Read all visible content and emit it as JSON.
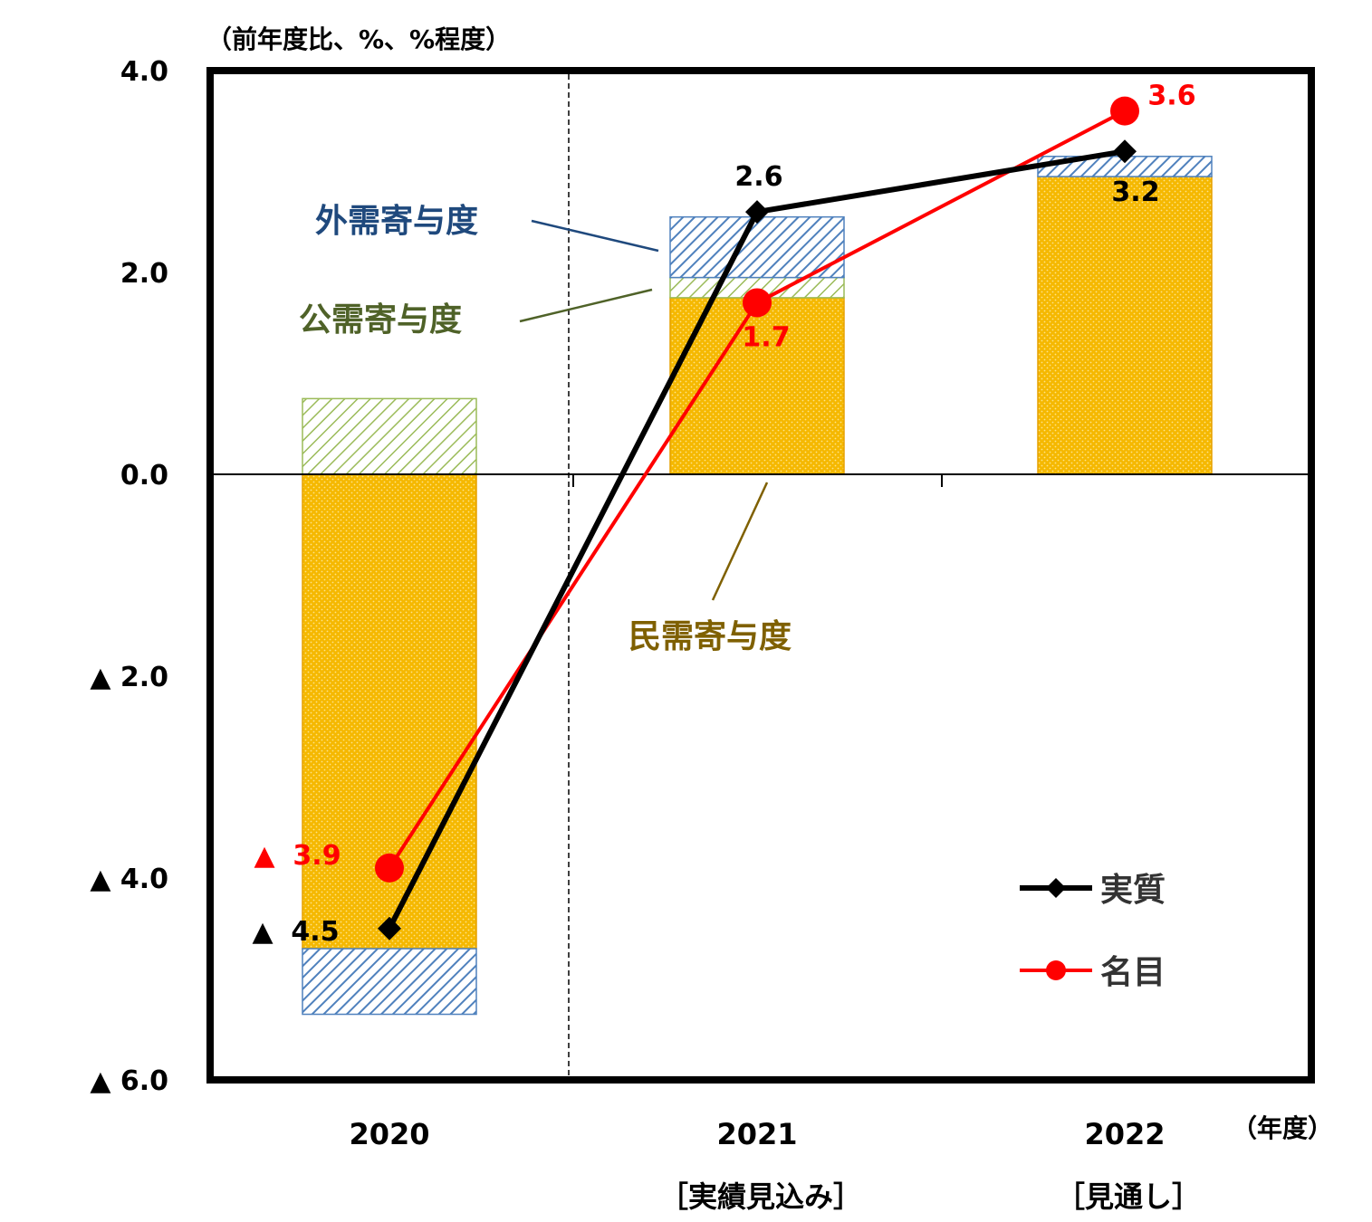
{
  "chart_data": {
    "type": "bar",
    "y_unit_label": "（前年度比、%、%程度）",
    "x_unit_label": "（年度）",
    "categories": [
      "2020",
      "2021",
      "2022"
    ],
    "category_sublabels": [
      "",
      "［実績見込み］",
      "［見通し］"
    ],
    "ylim": [
      -6,
      4
    ],
    "y_ticks": [
      {
        "value": 4,
        "label": "4.0",
        "negative": false
      },
      {
        "value": 2,
        "label": "2.0",
        "negative": false
      },
      {
        "value": 0,
        "label": "0.0",
        "negative": false
      },
      {
        "value": -2,
        "label": "2.0",
        "negative": true
      },
      {
        "value": -4,
        "label": "4.0",
        "negative": true
      },
      {
        "value": -6,
        "label": "6.0",
        "negative": true
      }
    ],
    "stacked_series": [
      {
        "name": "民需寄与度",
        "values": [
          -4.7,
          1.75,
          2.95
        ],
        "color": "#f5b800"
      },
      {
        "name": "公需寄与度",
        "values": [
          0.75,
          0.2,
          0.0
        ],
        "color": "#9bbb59"
      },
      {
        "name": "外需寄与度",
        "values": [
          -0.65,
          0.6,
          0.2
        ],
        "color": "#4f81bd"
      }
    ],
    "line_series": [
      {
        "name": "実質",
        "values": [
          -4.5,
          2.6,
          3.2
        ],
        "labels": [
          "4.5",
          "2.6",
          "3.2"
        ],
        "negative": [
          true,
          false,
          false
        ],
        "color": "#000000",
        "marker": "diamond"
      },
      {
        "name": "名目",
        "values": [
          -3.9,
          1.7,
          3.6
        ],
        "labels": [
          "3.9",
          "1.7",
          "3.6"
        ],
        "negative": [
          true,
          false,
          false
        ],
        "color": "#ff0000",
        "marker": "circle"
      }
    ],
    "annotations": [
      {
        "text": "外需寄与度",
        "color": "#1f497d"
      },
      {
        "text": "公需寄与度",
        "color": "#4f6228"
      },
      {
        "text": "民需寄与度",
        "color": "#7f6000"
      }
    ],
    "legend": {
      "position": "bottom-right",
      "items": [
        "実質",
        "名目"
      ]
    },
    "negative_marker": "▲"
  }
}
